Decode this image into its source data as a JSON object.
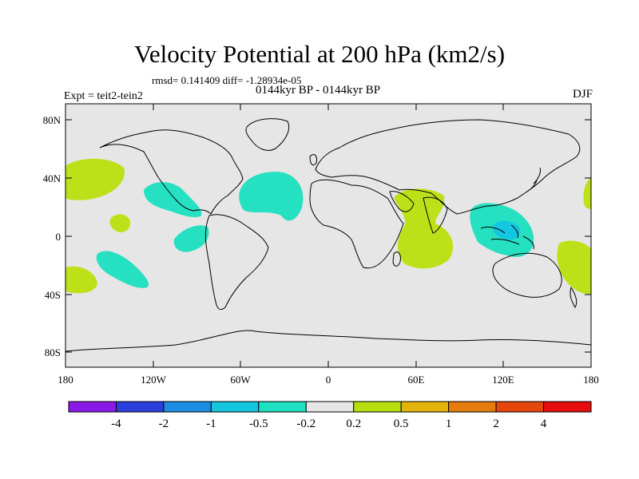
{
  "title": "Velocity Potential at 200 hPa (km2/s)",
  "stats": "rmsd= 0.141409 diff= -1.28934e-05",
  "left_label": "Expt = teit2-tein2",
  "center_label": "0144kyr BP - 0144kyr BP",
  "right_label": "DJF",
  "lat_ticks": [
    "80N",
    "40N",
    "0",
    "40S",
    "80S"
  ],
  "lon_ticks": [
    "180",
    "120W",
    "60W",
    "0",
    "60E",
    "120E",
    "180"
  ],
  "colorbar": {
    "labels": [
      "-4",
      "-2",
      "-1",
      "-0.5",
      "-0.2",
      "0.2",
      "0.5",
      "1",
      "2",
      "4"
    ],
    "colors": [
      "#8b1ae6",
      "#2a3fdc",
      "#1b8ee3",
      "#14c6de",
      "#1fe0c0",
      "#e6e6e6",
      "#b7df10",
      "#e2b40c",
      "#e67c0d",
      "#e4460c",
      "#e50d0d"
    ]
  },
  "fill_colors": {
    "background": "#e6e6e6",
    "positive_weak": "#bde118",
    "negative_weak": "#26e0c2",
    "negative_mid": "#14c6e0"
  }
}
